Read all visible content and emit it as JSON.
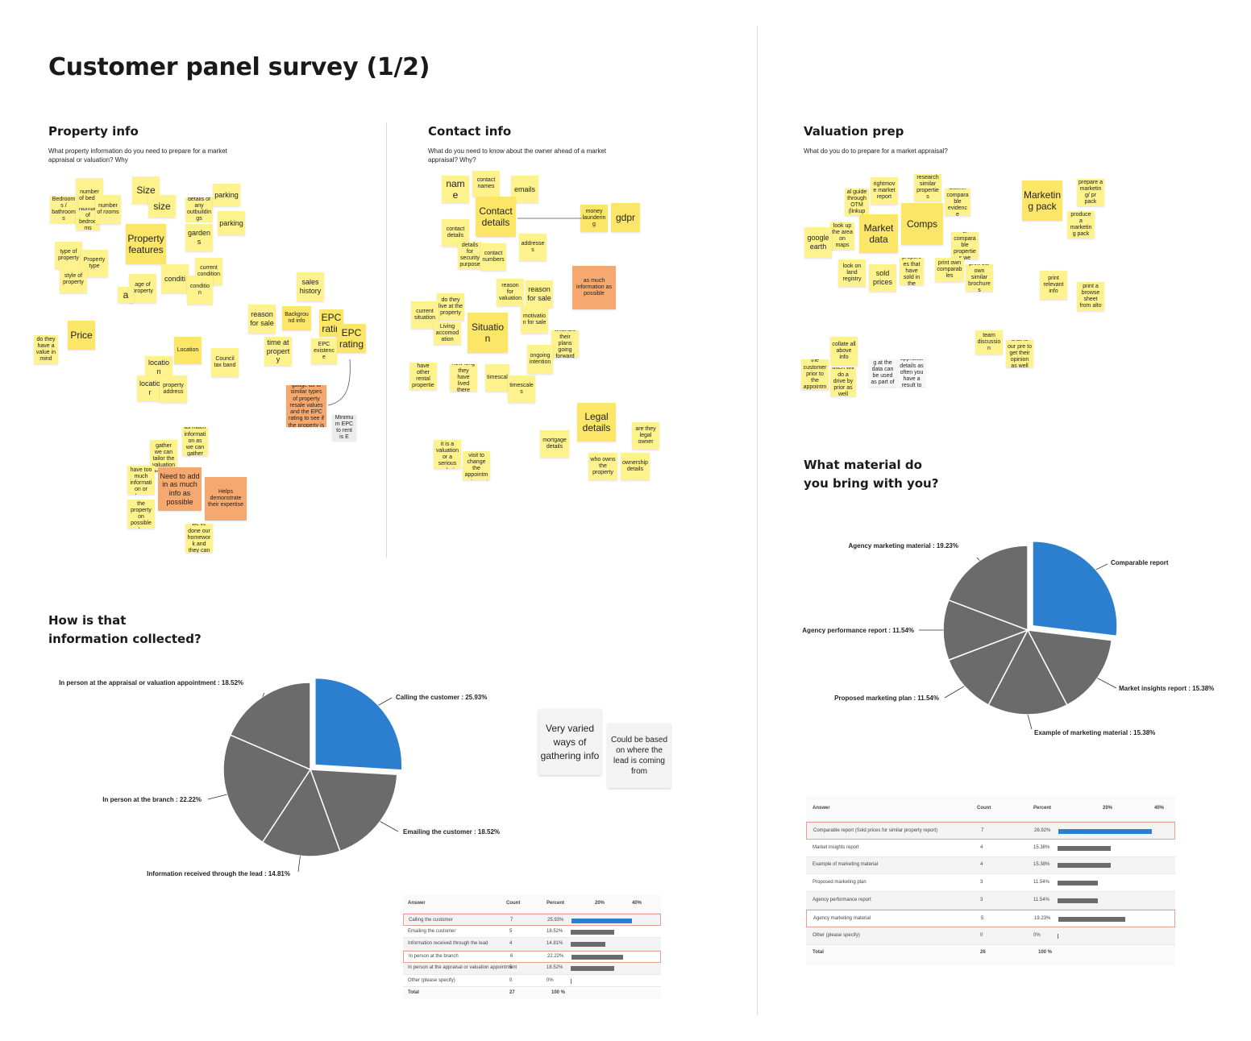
{
  "page": {
    "title": "Customer panel survey (1/2)"
  },
  "sections": {
    "property": {
      "title": "Property info",
      "sub": "What property information do you need to prepare for a market appraisal or valuation? Why"
    },
    "contact": {
      "title": "Contact info",
      "sub": "What do you need to know about the owner ahead of a market appraisal? Why?"
    },
    "valuation": {
      "title": "Valuation prep",
      "sub": "What do you do to prepare for a market appraisal?"
    },
    "how": {
      "title": "How is that information collected?"
    },
    "material": {
      "title": "What material do you bring with you?"
    }
  },
  "stickies": {
    "property": [
      "number of bedro",
      "Bedrooms / bathrooms",
      "Numbe of bedrooms",
      "number of rooms",
      "Size",
      "size",
      "details of any outbuildings",
      "parking",
      "parking",
      "Property features",
      "gardens",
      "type of property",
      "Property type",
      "style of property",
      "conditi",
      "current condition",
      "condition",
      "age of property",
      "a",
      "sales history",
      "Price",
      "do they have a value in mind",
      "reason for sale",
      "Background info",
      "EPC ratin",
      "EPC rating",
      "time at property",
      "EPC existence",
      "Location",
      "Council tax band",
      "location",
      "locatior",
      "property address",
      "To get a gauge as to similar types of property resale values and the EPC rating to see if the property is able to be let",
      "Minimum EPC to rent is E",
      "as much information as we can gather",
      "the more information we can gather we can tailor the valuation to meet the owners needs",
      "you can't have too much information or advance",
      "Need to add in as much info as possible",
      "Helps demonstrate their expertise",
      "give us ideas on image of the property on possible when doing comps",
      "this helps to show the customer we've done our homework and they can understand what expertise we have"
    ],
    "contact": [
      "name",
      "contact names",
      "emails",
      "Contact details",
      "money laundering",
      "gdpr",
      "contact details",
      "contact details for security purposes",
      "contact numbers",
      "addresses",
      "reason for valuation",
      "reason for sale",
      "as much information as possible",
      "do they live at the property",
      "current situation",
      "Living accomodation",
      "Situation",
      "motivation for sale",
      "what are their plans going forward",
      "ongoing intention",
      "do they have other rental properties",
      "how long they have lived there",
      "timescal",
      "timescales",
      "Legal details",
      "are they legal owner",
      "mortgage details",
      "who owns the property",
      "ownership details",
      "in order to know if it is a valuation or a serious marketing request",
      "in case I need to visit to change the appointment or get directions"
    ],
    "valuation": [
      "rightmove market report",
      "research similar properties",
      "market appraisal guide through OTM (linkup with Spriv)",
      "Gather comparable evidence",
      "look up the area on maps",
      "Market data",
      "Comps",
      "google earth",
      "print a list of comparable properties we have let",
      "look on land registry",
      "sold prices",
      "have a look at properties that have sold in the immediate area",
      "print own comparables",
      "print our own similar brochures",
      "Marketing pack",
      "prepare a marketing/ pr pack",
      "produce a marketing pack",
      "print relevant info",
      "print a browse sheet from alto",
      "collate all above info",
      "pre-call the customer prior to the appointment",
      "often will do a drive by prior as well",
      "Doubleclick outlooking at the data can be used as part of the appraisal prep",
      "it is important to look in the appraisal details as often you have a result to get more details of agent presence",
      "team discussion",
      "chat to our pre to get their opinion as well"
    ]
  },
  "notes": {
    "n1": "Very varied ways of gathering info",
    "n2": "Could be based on where the lead is coming from"
  },
  "chart_data": [
    {
      "type": "pie",
      "title": "How is that information collected?",
      "categories": [
        "Calling the customer",
        "Emailing the customer",
        "Information received through the lead",
        "In person at the branch",
        "In person at the appraisal or valuation appointment"
      ],
      "values": [
        25.93,
        18.52,
        14.81,
        22.22,
        18.52
      ],
      "labels": [
        "Calling the customer : 25.93%",
        "Emailing the customer : 18.52%",
        "Information received through the lead : 14.81%",
        "In person at the branch : 22.22%",
        "In person at the appraisal or valuation appointment : 18.52%"
      ],
      "colors": [
        "#2b7fce",
        "#6b6b6b",
        "#6b6b6b",
        "#6b6b6b",
        "#6b6b6b"
      ],
      "exploded": [
        true,
        false,
        false,
        false,
        false
      ]
    },
    {
      "type": "pie",
      "title": "What material do you bring with you?",
      "categories": [
        "Comparable report",
        "Market insights report",
        "Example of marketing material",
        "Proposed marketing plan",
        "Agency performance report",
        "Agency marketing material"
      ],
      "values": [
        26.92,
        15.38,
        15.38,
        11.54,
        11.54,
        19.23
      ],
      "labels": [
        "Comparable report",
        "Market insights report : 15.38%",
        "Example of marketing material : 15.38%",
        "Proposed marketing plan : 11.54%",
        "Agency performance report : 11.54%",
        "Agency marketing material : 19.23%"
      ],
      "colors": [
        "#2b7fce",
        "#6b6b6b",
        "#6b6b6b",
        "#6b6b6b",
        "#6b6b6b",
        "#6b6b6b"
      ],
      "exploded": [
        true,
        false,
        false,
        false,
        false,
        false
      ]
    },
    {
      "type": "table",
      "columns": [
        "Answer",
        "Count",
        "Percent",
        "20%",
        "40%"
      ],
      "rows": [
        {
          "answer": "Calling the customer",
          "count": "7",
          "percent": "25.93%",
          "value": 25.93,
          "highlight": true
        },
        {
          "answer": "Emailing the customer",
          "count": "5",
          "percent": "18.52%",
          "value": 18.52,
          "highlight": false
        },
        {
          "answer": "Information received through the lead",
          "count": "4",
          "percent": "14.81%",
          "value": 14.81,
          "highlight": false
        },
        {
          "answer": "In person at the branch",
          "count": "6",
          "percent": "22.22%",
          "value": 22.22,
          "highlight": true
        },
        {
          "answer": "In person at the appraisal or valuation appointment",
          "count": "5",
          "percent": "18.52%",
          "value": 18.52,
          "highlight": false
        },
        {
          "answer": "Other (please specify)",
          "count": "0",
          "percent": "0%",
          "value": 0,
          "highlight": false
        }
      ],
      "total": {
        "label": "Total",
        "count": "27",
        "percent": "100 %"
      }
    },
    {
      "type": "table",
      "columns": [
        "Answer",
        "Count",
        "Percent",
        "20%",
        "40%"
      ],
      "rows": [
        {
          "answer": "Comparable report (Sold prices for similar property report)",
          "count": "7",
          "percent": "26.92%",
          "value": 26.92,
          "highlight": true
        },
        {
          "answer": "Market insights report",
          "count": "4",
          "percent": "15.38%",
          "value": 15.38,
          "highlight": false
        },
        {
          "answer": "Example of marketing material",
          "count": "4",
          "percent": "15.38%",
          "value": 15.38,
          "highlight": false
        },
        {
          "answer": "Proposed marketing plan",
          "count": "3",
          "percent": "11.54%",
          "value": 11.54,
          "highlight": false
        },
        {
          "answer": "Agency performance report",
          "count": "3",
          "percent": "11.54%",
          "value": 11.54,
          "highlight": false
        },
        {
          "answer": "Agency marketing material",
          "count": "5",
          "percent": "19.23%",
          "value": 19.23,
          "highlight": true
        },
        {
          "answer": "Other (please specify)",
          "count": "0",
          "percent": "0%",
          "value": 0,
          "highlight": false
        }
      ],
      "total": {
        "label": "Total",
        "count": "26",
        "percent": "100 %"
      }
    }
  ]
}
